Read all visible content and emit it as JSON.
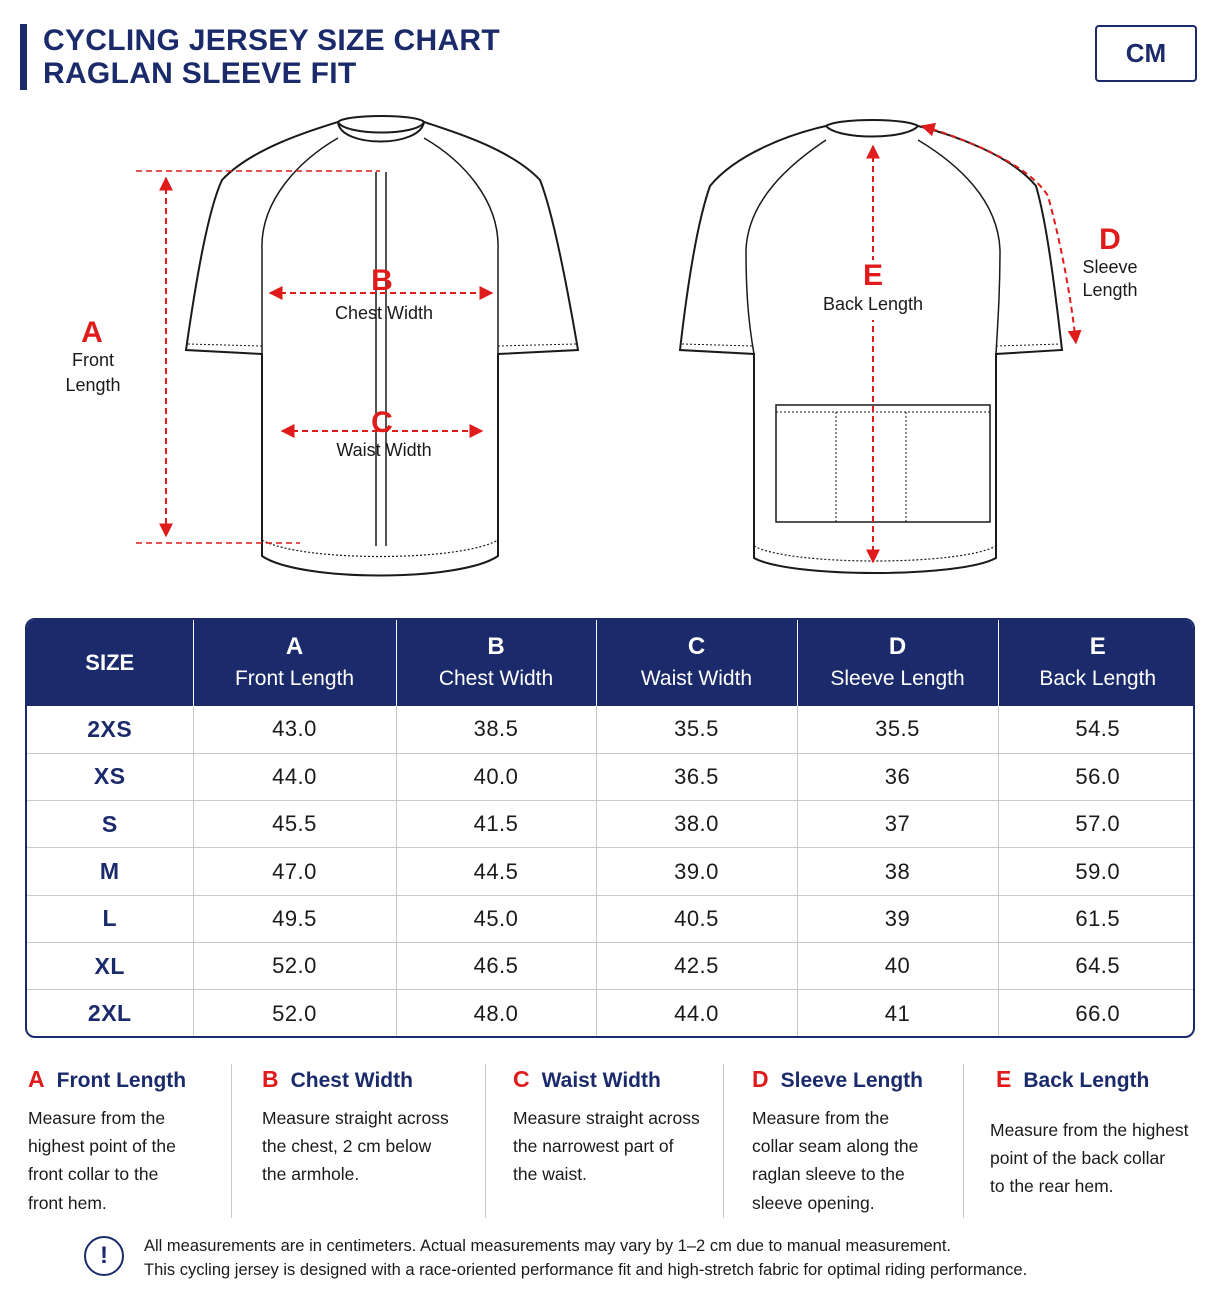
{
  "header": {
    "title_line1": "CYCLING JERSEY SIZE CHART",
    "title_line2": "RAGLAN SLEEVE FIT",
    "unit": "CM"
  },
  "diagram": {
    "front": {
      "a_letter": "A",
      "a_label_1": "Front",
      "a_label_2": "Length",
      "b_letter": "B",
      "b_label": "Chest Width",
      "c_letter": "C",
      "c_label": "Waist Width"
    },
    "back": {
      "d_letter": "D",
      "d_label_1": "Sleeve",
      "d_label_2": "Length",
      "e_letter": "E",
      "e_label": "Back Length"
    },
    "accent_color": "#e01b1b",
    "brand_color": "#1b2a6b"
  },
  "table": {
    "size_header": "SIZE",
    "columns": [
      {
        "letter": "A",
        "name": "Front Length"
      },
      {
        "letter": "B",
        "name": "Chest Width"
      },
      {
        "letter": "C",
        "name": "Waist Width"
      },
      {
        "letter": "D",
        "name": "Sleeve Length"
      },
      {
        "letter": "E",
        "name": "Back Length"
      }
    ],
    "rows": [
      {
        "size": "2XS",
        "values": [
          "43.0",
          "38.5",
          "35.5",
          "35.5",
          "54.5"
        ]
      },
      {
        "size": "XS",
        "values": [
          "44.0",
          "40.0",
          "36.5",
          "36",
          "56.0"
        ]
      },
      {
        "size": "S",
        "values": [
          "45.5",
          "41.5",
          "38.0",
          "37",
          "57.0"
        ]
      },
      {
        "size": "M",
        "values": [
          "47.0",
          "44.5",
          "39.0",
          "38",
          "59.0"
        ]
      },
      {
        "size": "L",
        "values": [
          "49.5",
          "45.0",
          "40.5",
          "39",
          "61.5"
        ]
      },
      {
        "size": "XL",
        "values": [
          "52.0",
          "46.5",
          "42.5",
          "40",
          "64.5"
        ]
      },
      {
        "size": "2XL",
        "values": [
          "52.0",
          "48.0",
          "44.0",
          "41",
          "66.0"
        ]
      }
    ]
  },
  "legend": [
    {
      "letter": "A",
      "title": "Front Length",
      "desc": "Measure from the\nhighest point of the\nfront collar to the\nfront hem."
    },
    {
      "letter": "B",
      "title": "Chest Width",
      "desc": "Measure straight across\nthe chest, 2 cm below\nthe armhole."
    },
    {
      "letter": "C",
      "title": "Waist Width",
      "desc": "Measure straight across\nthe narrowest part of\nthe waist."
    },
    {
      "letter": "D",
      "title": "Sleeve Length",
      "desc": "Measure from the\ncollar seam along the\nraglan sleeve to the\nsleeve opening."
    },
    {
      "letter": "E",
      "title": "Back Length",
      "desc": "Measure from the highest\npoint of the back collar\nto the rear hem."
    }
  ],
  "note": {
    "icon": "exclamation-circle-icon",
    "icon_glyph": "!",
    "line1": "All measurements are in centimeters. Actual measurements may vary by 1–2 cm due to manual measurement.",
    "line2": "This cycling jersey is designed with a race-oriented performance fit and high-stretch fabric for optimal riding performance."
  }
}
